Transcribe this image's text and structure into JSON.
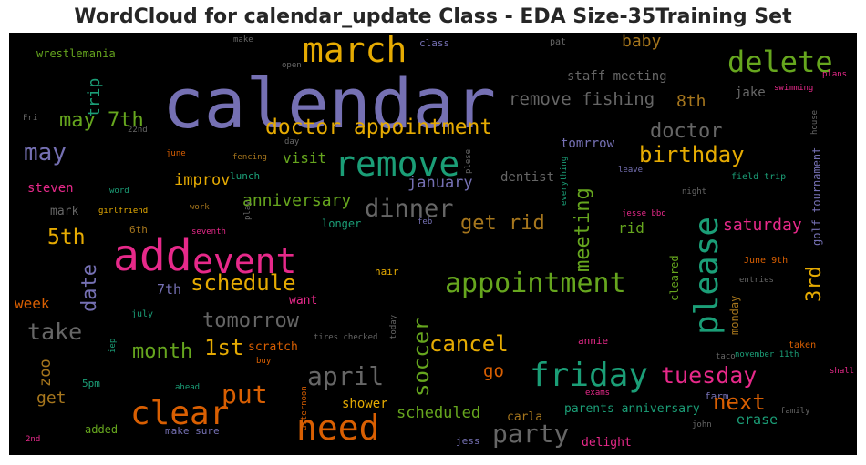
{
  "title": "WordCloud for calendar_update Class - EDA Size-35Training Set",
  "palette": {
    "purple": "#7570b3",
    "green": "#1b9e77",
    "orange": "#d95f02",
    "magenta": "#e7298a",
    "lime": "#66a61e",
    "gold": "#e6ab02",
    "brown": "#a6761d",
    "gray": "#666666"
  },
  "words": [
    {
      "text": "calendar",
      "color": "#7570b3"
    },
    {
      "text": "march",
      "color": "#e6ab02"
    },
    {
      "text": "delete",
      "color": "#66a61e"
    },
    {
      "text": "wrestlemania",
      "color": "#66a61e"
    },
    {
      "text": "make",
      "color": "#666666"
    },
    {
      "text": "class",
      "color": "#7570b3"
    },
    {
      "text": "pat",
      "color": "#666666"
    },
    {
      "text": "baby",
      "color": "#a6761d"
    },
    {
      "text": "open",
      "color": "#666666"
    },
    {
      "text": "staff meeting",
      "color": "#666666"
    },
    {
      "text": "plans",
      "color": "#e7298a"
    },
    {
      "text": "swimming",
      "color": "#e7298a"
    },
    {
      "text": "trip",
      "color": "#1b9e77"
    },
    {
      "text": "jake",
      "color": "#666666"
    },
    {
      "text": "may 7th",
      "color": "#66a61e"
    },
    {
      "text": "remove fishing",
      "color": "#666666"
    },
    {
      "text": "8th",
      "color": "#a6761d"
    },
    {
      "text": "Fri",
      "color": "#666666"
    },
    {
      "text": "22nd",
      "color": "#666666"
    },
    {
      "text": "doctor appointment",
      "color": "#e6ab02"
    },
    {
      "text": "doctor",
      "color": "#666666"
    },
    {
      "text": "house",
      "color": "#666666"
    },
    {
      "text": "day",
      "color": "#666666"
    },
    {
      "text": "golf tournament",
      "color": "#7570b3"
    },
    {
      "text": "may",
      "color": "#7570b3"
    },
    {
      "text": "june",
      "color": "#d95f02"
    },
    {
      "text": "fencing",
      "color": "#a6761d"
    },
    {
      "text": "remove",
      "color": "#1b9e77"
    },
    {
      "text": "plese",
      "color": "#666666"
    },
    {
      "text": "tomrrow",
      "color": "#7570b3"
    },
    {
      "text": "birthday",
      "color": "#e6ab02"
    },
    {
      "text": "leave",
      "color": "#7570b3"
    },
    {
      "text": "visit",
      "color": "#66a61e"
    },
    {
      "text": "field trip",
      "color": "#1b9e77"
    },
    {
      "text": "lunch",
      "color": "#1b9e77"
    },
    {
      "text": "improv",
      "color": "#e6ab02"
    },
    {
      "text": "dentist",
      "color": "#666666"
    },
    {
      "text": "everything",
      "color": "#1b9e77"
    },
    {
      "text": "steven",
      "color": "#e7298a"
    },
    {
      "text": "word",
      "color": "#1b9e77"
    },
    {
      "text": "january",
      "color": "#7570b3"
    },
    {
      "text": "night",
      "color": "#666666"
    },
    {
      "text": "anniversary",
      "color": "#66a61e"
    },
    {
      "text": "work",
      "color": "#a6761d"
    },
    {
      "text": "mark",
      "color": "#666666"
    },
    {
      "text": "girlfriend",
      "color": "#e6ab02"
    },
    {
      "text": "dinner",
      "color": "#666666"
    },
    {
      "text": "jesse bbq",
      "color": "#e7298a"
    },
    {
      "text": "play",
      "color": "#666666"
    },
    {
      "text": "longer",
      "color": "#1b9e77"
    },
    {
      "text": "feb",
      "color": "#7570b3"
    },
    {
      "text": "please",
      "color": "#1b9e77"
    },
    {
      "text": "6th",
      "color": "#a6761d"
    },
    {
      "text": "seventh",
      "color": "#e7298a"
    },
    {
      "text": "get rid",
      "color": "#a6761d"
    },
    {
      "text": "saturday",
      "color": "#e7298a"
    },
    {
      "text": "5th",
      "color": "#e6ab02"
    },
    {
      "text": "add",
      "color": "#e7298a"
    },
    {
      "text": "meeting",
      "color": "#66a61e"
    },
    {
      "text": "rid",
      "color": "#66a61e"
    },
    {
      "text": "event",
      "color": "#e7298a"
    },
    {
      "text": "cleared",
      "color": "#66a61e"
    },
    {
      "text": "June 9th",
      "color": "#d95f02"
    },
    {
      "text": "date",
      "color": "#7570b3"
    },
    {
      "text": "hair",
      "color": "#e6ab02"
    },
    {
      "text": "entries",
      "color": "#666666"
    },
    {
      "text": "appointment",
      "color": "#66a61e"
    },
    {
      "text": "schedule",
      "color": "#e6ab02"
    },
    {
      "text": "week",
      "color": "#d95f02"
    },
    {
      "text": "7th",
      "color": "#7570b3"
    },
    {
      "text": "want",
      "color": "#e7298a"
    },
    {
      "text": "3rd",
      "color": "#e6ab02"
    },
    {
      "text": "monday",
      "color": "#a6761d"
    },
    {
      "text": "take",
      "color": "#666666"
    },
    {
      "text": "tomorrow",
      "color": "#666666"
    },
    {
      "text": "july",
      "color": "#1b9e77"
    },
    {
      "text": "iep",
      "color": "#1b9e77"
    },
    {
      "text": "month",
      "color": "#66a61e"
    },
    {
      "text": "1st",
      "color": "#e6ab02"
    },
    {
      "text": "scratch",
      "color": "#d95f02"
    },
    {
      "text": "tires checked",
      "color": "#666666"
    },
    {
      "text": "today",
      "color": "#666666"
    },
    {
      "text": "annie",
      "color": "#e7298a"
    },
    {
      "text": "taco",
      "color": "#666666"
    },
    {
      "text": "november 11th",
      "color": "#1b9e77"
    },
    {
      "text": "cancel",
      "color": "#e6ab02"
    },
    {
      "text": "soccer",
      "color": "#66a61e"
    },
    {
      "text": "taken",
      "color": "#d95f02"
    },
    {
      "text": "zoo",
      "color": "#a6761d"
    },
    {
      "text": "5pm",
      "color": "#1b9e77"
    },
    {
      "text": "buy",
      "color": "#d95f02"
    },
    {
      "text": "april",
      "color": "#666666"
    },
    {
      "text": "go",
      "color": "#d95f02"
    },
    {
      "text": "friday",
      "color": "#1b9e77"
    },
    {
      "text": "tuesday",
      "color": "#e7298a"
    },
    {
      "text": "shall",
      "color": "#e7298a"
    },
    {
      "text": "ahead",
      "color": "#1b9e77"
    },
    {
      "text": "afternoon",
      "color": "#d95f02"
    },
    {
      "text": "exams",
      "color": "#e7298a"
    },
    {
      "text": "get",
      "color": "#a6761d"
    },
    {
      "text": "put",
      "color": "#d95f02"
    },
    {
      "text": "shower",
      "color": "#e6ab02"
    },
    {
      "text": "farm",
      "color": "#7570b3"
    },
    {
      "text": "family",
      "color": "#666666"
    },
    {
      "text": "clear",
      "color": "#d95f02"
    },
    {
      "text": "parents anniversary",
      "color": "#1b9e77"
    },
    {
      "text": "scheduled",
      "color": "#66a61e"
    },
    {
      "text": "next",
      "color": "#d95f02"
    },
    {
      "text": "need",
      "color": "#d95f02"
    },
    {
      "text": "john",
      "color": "#666666"
    },
    {
      "text": "added",
      "color": "#66a61e"
    },
    {
      "text": "carla",
      "color": "#a6761d"
    },
    {
      "text": "party",
      "color": "#666666"
    },
    {
      "text": "make sure",
      "color": "#7570b3"
    },
    {
      "text": "delight",
      "color": "#e7298a"
    },
    {
      "text": "erase",
      "color": "#1b9e77"
    },
    {
      "text": "2nd",
      "color": "#e7298a"
    },
    {
      "text": "jess",
      "color": "#7570b3"
    }
  ]
}
